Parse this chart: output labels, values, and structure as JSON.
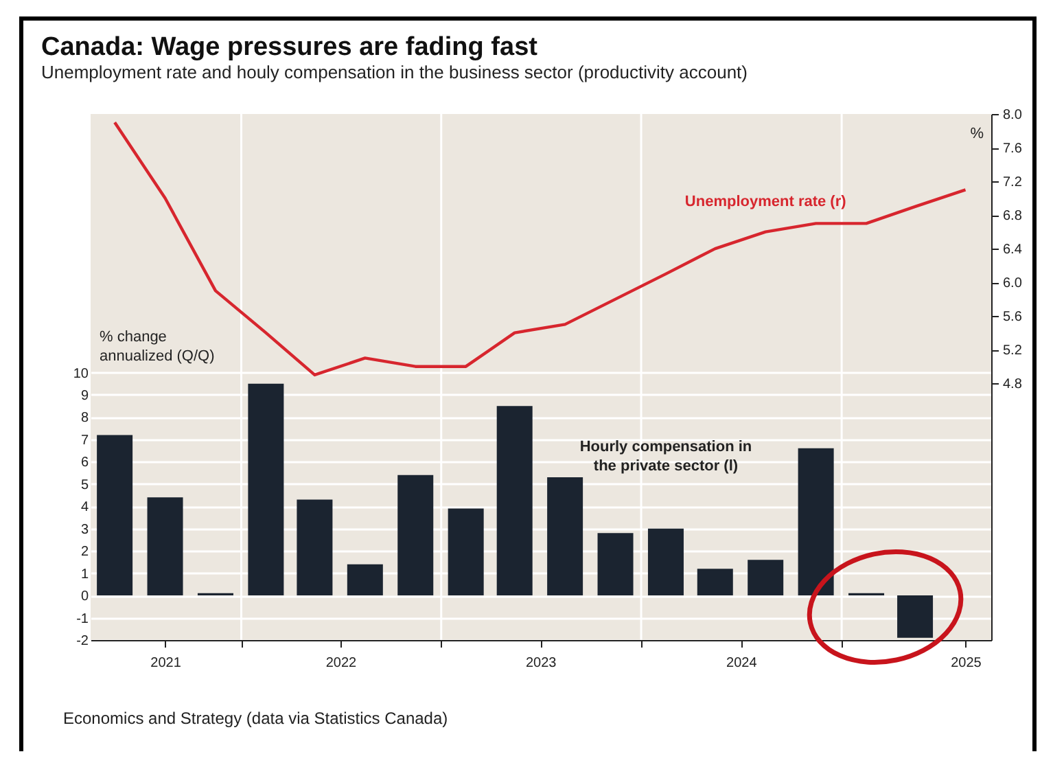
{
  "chart_data": {
    "type": "bar",
    "title": "Canada: Wage pressures are fading fast",
    "subtitle": "Unemployment rate and houly compensation in the business sector (productivity account)",
    "ylabel": "% change annualized (Q/Q)",
    "y2label": "%",
    "x": [
      "2021-05-15",
      "2021-08-15",
      "2021-11-15",
      "2022-02-15",
      "2022-05-15",
      "2022-08-15",
      "2022-11-15",
      "2023-02-15",
      "2023-05-15",
      "2023-08-15",
      "2023-11-15",
      "2024-02-15",
      "2024-05-15",
      "2024-08-15",
      "2024-11-15",
      "2025-02-15",
      "2025-05-15",
      "2025-08-15"
    ],
    "series": [
      {
        "name": "Hourly compensation in the private sector (l)",
        "type": "bar",
        "color": "#1b2430",
        "values": [
          7.2,
          4.4,
          0.1,
          9.5,
          4.3,
          1.4,
          5.4,
          3.9,
          8.5,
          5.3,
          2.8,
          3.0,
          1.2,
          1.6,
          6.6,
          0.1,
          -1.9,
          null
        ]
      },
      {
        "name": "Unemployment rate (r)",
        "type": "line",
        "axis": "y2",
        "color": "#d7262e",
        "values": [
          7.9,
          7.0,
          5.9,
          5.4,
          4.9,
          5.1,
          5.0,
          5.0,
          5.4,
          5.5,
          5.8,
          6.1,
          6.4,
          6.6,
          6.7,
          6.7,
          6.9,
          7.1
        ]
      }
    ],
    "xlim": [
      "2021-04-01",
      "2025-10-01"
    ],
    "xticks": [
      {
        "value": "2021-08-15",
        "label": "2021"
      },
      {
        "value": "2022-01-01",
        "label": null
      },
      {
        "value": "2022-07-01",
        "label": "2022"
      },
      {
        "value": "2023-01-01",
        "label": null
      },
      {
        "value": "2023-07-01",
        "label": "2023"
      },
      {
        "value": "2024-01-01",
        "label": null
      },
      {
        "value": "2024-07-01",
        "label": "2024"
      },
      {
        "value": "2025-01-01",
        "label": null
      },
      {
        "value": "2025-08-15",
        "label": "2025"
      }
    ],
    "ylim": [
      -2,
      21.6
    ],
    "yticks": [
      -2,
      -1,
      0,
      1,
      2,
      3,
      4,
      5,
      6,
      7,
      8,
      9,
      10
    ],
    "y2lim": [
      1.75,
      8.0
    ],
    "y2ticks": [
      4.8,
      5.2,
      5.6,
      {
        "value": 6,
        "label": "6.0"
      },
      6.4,
      6.8,
      7.2,
      7.6,
      {
        "value": 8,
        "label": "8.0"
      }
    ],
    "grid": true,
    "marker": "none",
    "line_style": "solid",
    "annotations": [
      "Economics and Strategy (data via Statistics Canada)"
    ]
  }
}
